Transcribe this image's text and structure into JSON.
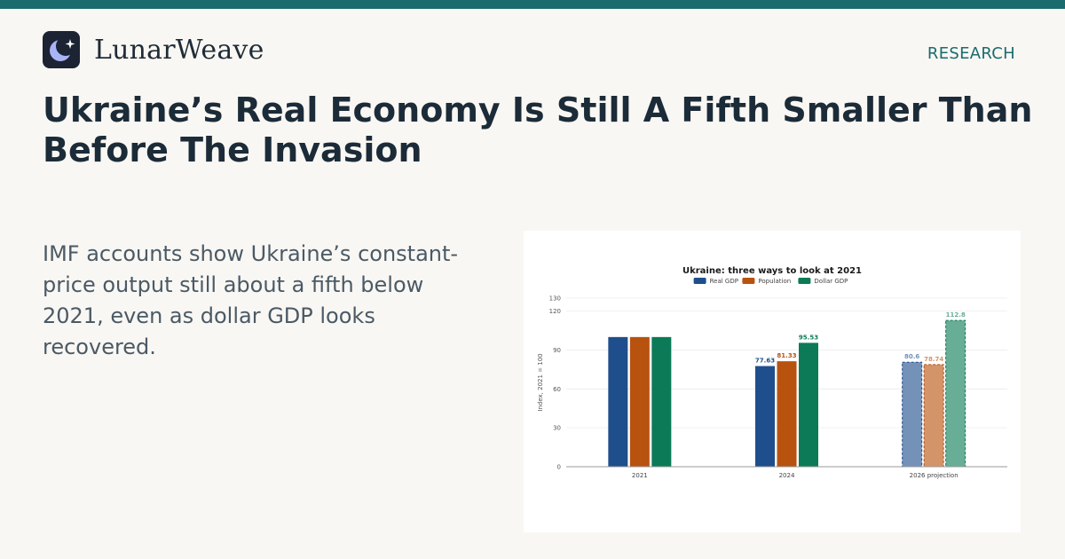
{
  "brand": {
    "name": "LunarWeave",
    "logo_icon": "crescent-moon-star-icon"
  },
  "header": {
    "section": "RESEARCH"
  },
  "article": {
    "headline": "Ukraine’s Real Economy Is Still A Fifth Smaller Than Before The Invasion",
    "lead": "IMF accounts show Ukraine’s constant-price output still about a fifth below 2021, even as dollar GDP looks recovered."
  },
  "colors": {
    "accent": "#1a6b6e",
    "real_gdp": "#1f4e8c",
    "population": "#b8520f",
    "dollar_gdp": "#0c7a56"
  },
  "chart_data": {
    "type": "bar",
    "title": "Ukraine: three ways to look at 2021",
    "ylabel": "Index, 2021 = 100",
    "xlabel": "",
    "categories": [
      "2021",
      "2024",
      "2026 projection"
    ],
    "series": [
      {
        "name": "Real GDP",
        "values": [
          100,
          77.63,
          80.6
        ],
        "color": "#1f4e8c"
      },
      {
        "name": "Population",
        "values": [
          100,
          81.33,
          78.74
        ],
        "color": "#b8520f"
      },
      {
        "name": "Dollar GDP",
        "values": [
          100,
          95.53,
          112.8
        ],
        "color": "#0c7a56"
      }
    ],
    "data_labels": [
      [
        "",
        "77.63",
        "80.6"
      ],
      [
        "",
        "81.33",
        "78.74"
      ],
      [
        "",
        "95.53",
        "112.8"
      ]
    ],
    "projected_categories": [
      "2026 projection"
    ],
    "yticks": [
      0,
      30,
      60,
      90,
      120,
      130
    ],
    "ylim": [
      0,
      130
    ],
    "grid": true,
    "legend": "top-center"
  }
}
